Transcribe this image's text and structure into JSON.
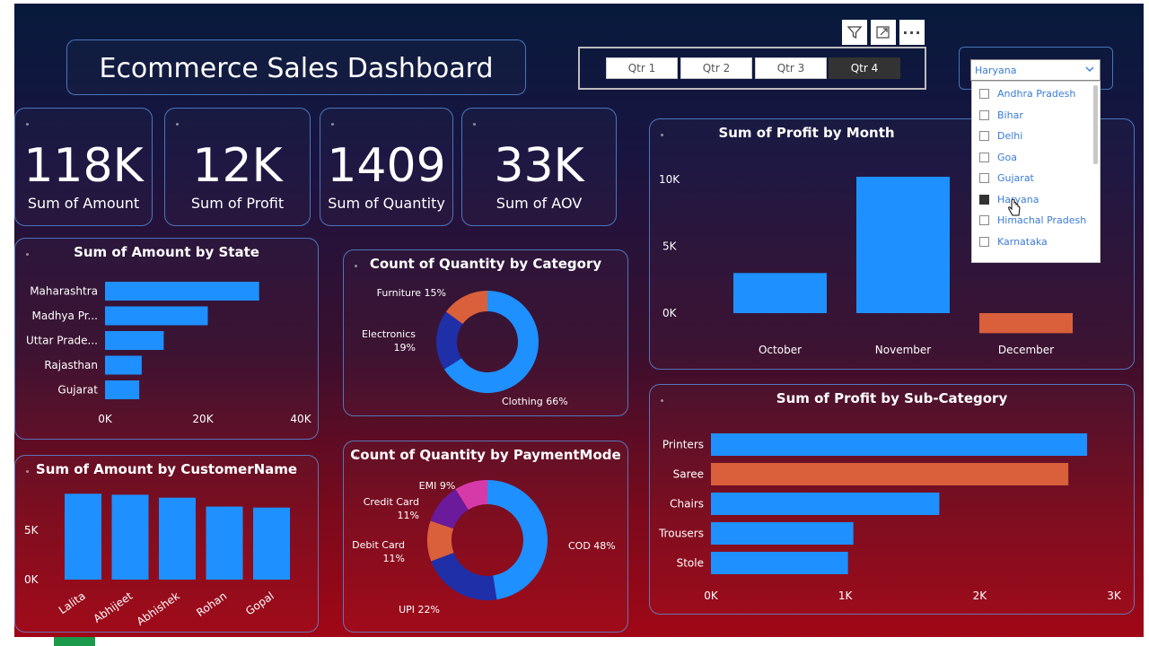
{
  "title": "Ecommerce Sales Dashboard",
  "kpis": [
    {
      "value": "118K",
      "label": "Sum of Amount"
    },
    {
      "value": "12K",
      "label": "Sum of Profit"
    },
    {
      "value": "1409",
      "label": "Sum of Quantity"
    },
    {
      "value": "33K",
      "label": "Sum of AOV"
    }
  ],
  "quarter_slicer": {
    "items": [
      "Qtr 1",
      "Qtr 2",
      "Qtr 3",
      "Qtr 4"
    ],
    "selected": "Qtr 4"
  },
  "state_dropdown": {
    "selected": "Haryana",
    "options": [
      "Andhra Pradesh",
      "Bihar",
      "Delhi",
      "Goa",
      "Gujarat",
      "Haryana",
      "Himachal Pradesh",
      "Karnataka"
    ]
  },
  "visual_header_icons": [
    "filter-icon",
    "focus-mode-icon",
    "more-options-icon"
  ],
  "colors": {
    "blue": "#1e90ff",
    "orange": "#d9603b",
    "navy": "#1f2fa8",
    "purple": "#6a1a9a",
    "pink": "#d63aa8"
  },
  "chart_data": [
    {
      "type": "bar",
      "orientation": "horizontal",
      "title": "Sum of Amount by State",
      "categories": [
        "Maharashtra",
        "Madhya Pr...",
        "Uttar Prade...",
        "Rajasthan",
        "Gujarat"
      ],
      "values": [
        31500,
        21000,
        12000,
        7500,
        7000
      ],
      "xticks": [
        "0K",
        "20K",
        "40K"
      ],
      "xlim": [
        0,
        40000
      ]
    },
    {
      "type": "bar",
      "title": "Sum of Amount by CustomerName",
      "categories": [
        "Lalita",
        "Abhijeet",
        "Abhishek",
        "Rohan",
        "Gopal"
      ],
      "values": [
        8700,
        8600,
        8300,
        7400,
        7300
      ],
      "yticks": [
        "5K",
        "0K"
      ],
      "ylim": [
        0,
        10000
      ]
    },
    {
      "type": "pie",
      "title": "Count of Quantity by Category",
      "labels": [
        "Clothing",
        "Electronics",
        "Furniture"
      ],
      "values": [
        66,
        19,
        15
      ],
      "slice_labels": [
        "Clothing 66%",
        "Electronics\n19%",
        "Furniture 15%"
      ]
    },
    {
      "type": "pie",
      "title": "Count of Quantity by PaymentMode",
      "labels": [
        "COD",
        "UPI",
        "Debit Card",
        "Credit Card",
        "EMI"
      ],
      "values": [
        48,
        22,
        11,
        11,
        9
      ],
      "slice_labels": [
        "COD 48%",
        "UPI 22%",
        "Debit Card\n11%",
        "Credit Card\n11%",
        "EMI 9%"
      ]
    },
    {
      "type": "bar",
      "title": "Sum of Profit by Month",
      "categories": [
        "October",
        "November",
        "December"
      ],
      "values": [
        3000,
        10200,
        -1500
      ],
      "yticks": [
        "10K",
        "5K",
        "0K"
      ],
      "ylim": [
        -2000,
        11000
      ]
    },
    {
      "type": "bar",
      "orientation": "horizontal",
      "title": "Sum of Profit by Sub-Category",
      "categories": [
        "Printers",
        "Saree",
        "Chairs",
        "Trousers",
        "Stole"
      ],
      "values": [
        2800,
        2660,
        1700,
        1060,
        1020
      ],
      "xticks": [
        "0K",
        "1K",
        "2K",
        "3K"
      ],
      "xlim": [
        0,
        3000
      ]
    }
  ]
}
